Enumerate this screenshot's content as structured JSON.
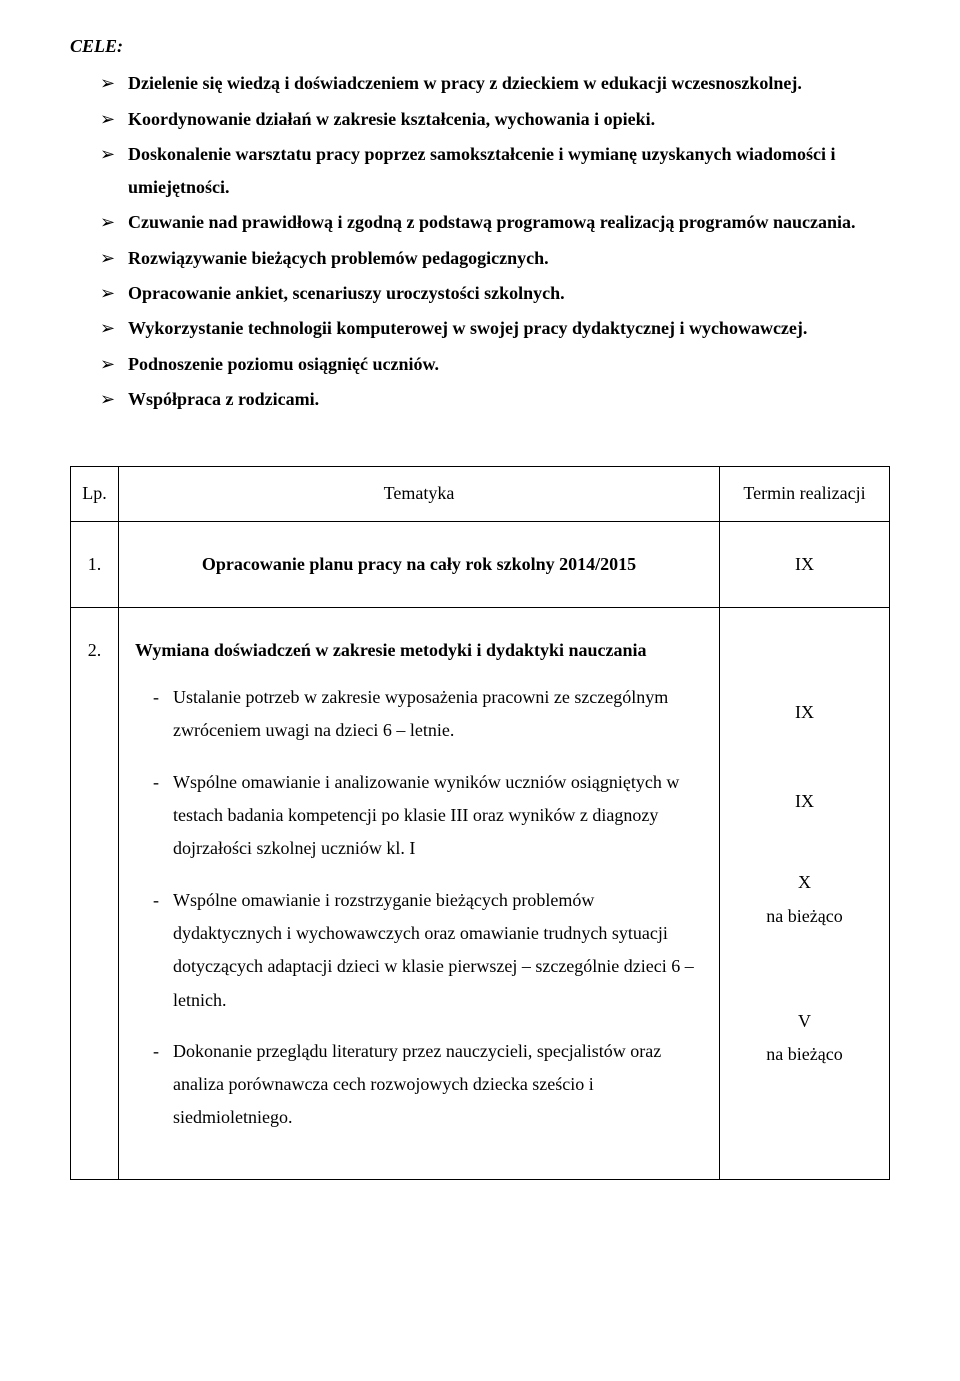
{
  "heading": "CELE:",
  "bullets": [
    "Dzielenie się wiedzą i doświadczeniem w pracy z dzieckiem w edukacji wczesnoszkolnej.",
    "Koordynowanie działań w zakresie kształcenia, wychowania i opieki.",
    "Doskonalenie warsztatu pracy poprzez samokształcenie i wymianę uzyskanych wiadomości i umiejętności.",
    "Czuwanie nad prawidłową i zgodną z podstawą programową realizacją programów nauczania.",
    "Rozwiązywanie bieżących problemów pedagogicznych.",
    "Opracowanie ankiet, scenariuszy uroczystości szkolnych.",
    "Wykorzystanie technologii komputerowej w swojej pracy dydaktycznej i wychowawczej.",
    "Podnoszenie poziomu osiągnięć uczniów.",
    "Współpraca z rodzicami."
  ],
  "table": {
    "headers": {
      "lp": "Lp.",
      "topic": "Tematyka",
      "term": "Termin realizacji"
    },
    "row1": {
      "num": "1.",
      "content": "Opracowanie planu pracy na cały rok szkolny 2014/2015",
      "term": "IX"
    },
    "row2": {
      "num": "2.",
      "title": "Wymiana doświadczeń w zakresie metodyki i dydaktyki nauczania",
      "items": [
        "Ustalanie potrzeb w zakresie wyposażenia pracowni ze szczególnym zwróceniem uwagi na dzieci 6 – letnie.",
        "Wspólne omawianie i analizowanie wyników uczniów osiągniętych w testach badania kompetencji po klasie III oraz wyników z diagnozy dojrzałości szkolnej uczniów kl. I",
        "Wspólne omawianie i rozstrzyganie bieżących problemów dydaktycznych i wychowawczych oraz omawianie trudnych sytuacji dotyczących adaptacji dzieci w klasie pierwszej – szczególnie dzieci 6 – letnich.",
        "Dokonanie przeglądu literatury przez nauczycieli, specjalistów oraz  analiza porównawcza cech rozwojowych dziecka sześcio i siedmioletniego."
      ],
      "terms": [
        {
          "l1": "IX",
          "l2": ""
        },
        {
          "l1": "IX",
          "l2": ""
        },
        {
          "l1": "X",
          "l2": "na bieżąco"
        },
        {
          "l1": "V",
          "l2": "na bieżąco"
        }
      ]
    }
  }
}
